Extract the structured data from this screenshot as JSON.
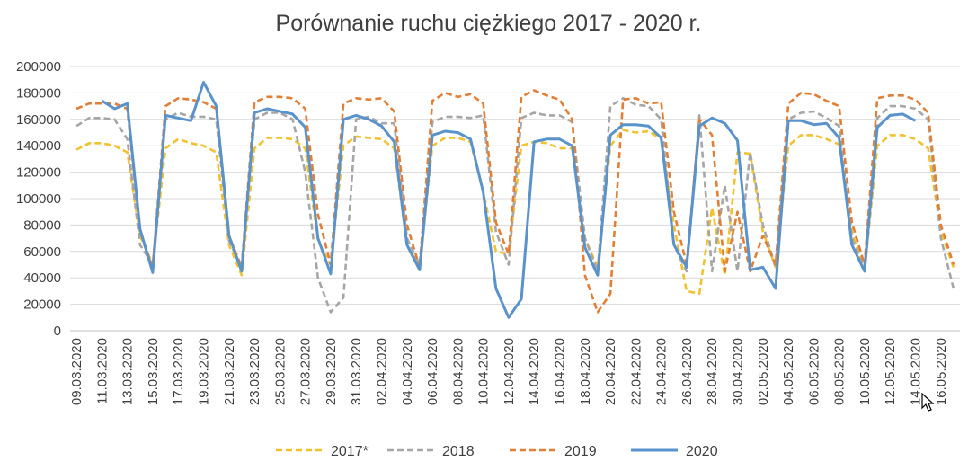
{
  "chart_data": {
    "type": "line",
    "title": "Porównanie ruchu ciężkiego 2017 - 2020 r.",
    "xlabel": "",
    "ylabel": "",
    "ylim": [
      0,
      200000
    ],
    "yticks": [
      "0",
      "20000",
      "40000",
      "60000",
      "80000",
      "100000",
      "120000",
      "140000",
      "160000",
      "180000",
      "200000"
    ],
    "grid": "horizontal",
    "legend_position": "bottom",
    "x_tick_labels": [
      "09.03.2020",
      "11.03.2020",
      "13.03.2020",
      "15.03.2020",
      "17.03.2020",
      "19.03.2020",
      "21.03.2020",
      "23.03.2020",
      "25.03.2020",
      "27.03.2020",
      "29.03.2020",
      "31.03.2020",
      "02.04.2020",
      "04.04.2020",
      "06.04.2020",
      "08.04.2020",
      "10.04.2020",
      "12.04.2020",
      "14.04.2020",
      "16.04.2020",
      "18.04.2020",
      "20.04.2020",
      "22.04.2020",
      "24.04.2020",
      "26.04.2020",
      "28.04.2020",
      "30.04.2020",
      "02.05.2020",
      "04.05.2020",
      "06.05.2020",
      "08.05.2020",
      "10.05.2020",
      "12.05.2020",
      "14.05.2020",
      "16.05.2020"
    ],
    "x": [
      "09.03.2020",
      "10.03.2020",
      "11.03.2020",
      "12.03.2020",
      "13.03.2020",
      "14.03.2020",
      "15.03.2020",
      "16.03.2020",
      "17.03.2020",
      "18.03.2020",
      "19.03.2020",
      "20.03.2020",
      "21.03.2020",
      "22.03.2020",
      "23.03.2020",
      "24.03.2020",
      "25.03.2020",
      "26.03.2020",
      "27.03.2020",
      "28.03.2020",
      "29.03.2020",
      "30.03.2020",
      "31.03.2020",
      "01.04.2020",
      "02.04.2020",
      "03.04.2020",
      "04.04.2020",
      "05.04.2020",
      "06.04.2020",
      "07.04.2020",
      "08.04.2020",
      "09.04.2020",
      "10.04.2020",
      "11.04.2020",
      "12.04.2020",
      "13.04.2020",
      "14.04.2020",
      "15.04.2020",
      "16.04.2020",
      "17.04.2020",
      "18.04.2020",
      "19.04.2020",
      "20.04.2020",
      "21.04.2020",
      "22.04.2020",
      "23.04.2020",
      "24.04.2020",
      "25.04.2020",
      "26.04.2020",
      "27.04.2020",
      "28.04.2020",
      "29.04.2020",
      "30.04.2020",
      "01.05.2020",
      "02.05.2020",
      "03.05.2020",
      "04.05.2020",
      "05.05.2020",
      "06.05.2020",
      "07.05.2020",
      "08.05.2020",
      "09.05.2020",
      "10.05.2020",
      "11.05.2020",
      "12.05.2020",
      "13.05.2020",
      "14.05.2020",
      "15.05.2020",
      "16.05.2020",
      "17.05.2020"
    ],
    "series": [
      {
        "name": "2017*",
        "color": "#F2C12E",
        "style": "dashed",
        "values": [
          137000,
          142000,
          142000,
          140000,
          135000,
          72000,
          50000,
          138000,
          145000,
          142000,
          140000,
          135000,
          65000,
          42000,
          138000,
          146000,
          146000,
          145000,
          138000,
          68000,
          50000,
          140000,
          147000,
          146000,
          145000,
          138000,
          65000,
          48000,
          140000,
          146000,
          146000,
          143000,
          105000,
          60000,
          58000,
          140000,
          143000,
          142000,
          138000,
          138000,
          70000,
          48000,
          140000,
          152000,
          150000,
          151000,
          145000,
          80000,
          30000,
          28000,
          93000,
          42000,
          135000,
          134000,
          75000,
          48000,
          140000,
          148000,
          148000,
          145000,
          141000,
          75000,
          45000,
          140000,
          148000,
          148000,
          145000,
          138000,
          75000,
          48000
        ]
      },
      {
        "name": "2018",
        "color": "#A6A6A6",
        "style": "dashed",
        "values": [
          155000,
          161000,
          161000,
          160000,
          145000,
          65000,
          50000,
          160000,
          165000,
          162000,
          162000,
          160000,
          68000,
          48000,
          160000,
          165000,
          165000,
          160000,
          120000,
          40000,
          14000,
          25000,
          160000,
          162000,
          157000,
          157000,
          70000,
          50000,
          158000,
          162000,
          162000,
          161000,
          163000,
          75000,
          50000,
          161000,
          165000,
          163000,
          163000,
          158000,
          70000,
          45000,
          170000,
          176000,
          171000,
          170000,
          160000,
          65000,
          45000,
          163000,
          45000,
          110000,
          45000,
          135000,
          80000,
          48000,
          160000,
          165000,
          166000,
          161000,
          155000,
          70000,
          48000,
          161000,
          170000,
          170000,
          168000,
          160000,
          70000,
          32000
        ]
      },
      {
        "name": "2019",
        "color": "#E17F36",
        "style": "dashed",
        "values": [
          168000,
          172000,
          172000,
          172000,
          168000,
          75000,
          48000,
          170000,
          176000,
          175000,
          173000,
          168000,
          72000,
          48000,
          173000,
          177000,
          177000,
          176000,
          168000,
          88000,
          50000,
          172000,
          176000,
          175000,
          176000,
          166000,
          80000,
          48000,
          174000,
          180000,
          177000,
          179000,
          172000,
          82000,
          58000,
          177000,
          182000,
          178000,
          175000,
          160000,
          42000,
          14000,
          28000,
          175000,
          176000,
          172000,
          173000,
          90000,
          50000,
          160000,
          148000,
          45000,
          90000,
          45000,
          72000,
          50000,
          172000,
          180000,
          179000,
          174000,
          170000,
          82000,
          50000,
          176000,
          178000,
          178000,
          175000,
          165000,
          80000,
          50000
        ]
      },
      {
        "name": "2020",
        "color": "#5A93CC",
        "style": "solid",
        "values": [
          null,
          null,
          174000,
          168000,
          172000,
          77000,
          44000,
          163000,
          161000,
          159000,
          188000,
          170000,
          72000,
          45000,
          165000,
          168000,
          166000,
          164000,
          154000,
          70000,
          43000,
          160000,
          163000,
          160000,
          155000,
          143000,
          65000,
          46000,
          148000,
          151000,
          150000,
          145000,
          105000,
          32000,
          10000,
          24000,
          143000,
          145000,
          145000,
          140000,
          63000,
          42000,
          148000,
          156000,
          156000,
          155000,
          146000,
          65000,
          48000,
          155000,
          161000,
          157000,
          144000,
          46000,
          48000,
          32000,
          159000,
          159000,
          156000,
          157000,
          146000,
          65000,
          45000,
          154000,
          163000,
          164000,
          159000,
          null,
          null,
          null
        ]
      }
    ]
  }
}
